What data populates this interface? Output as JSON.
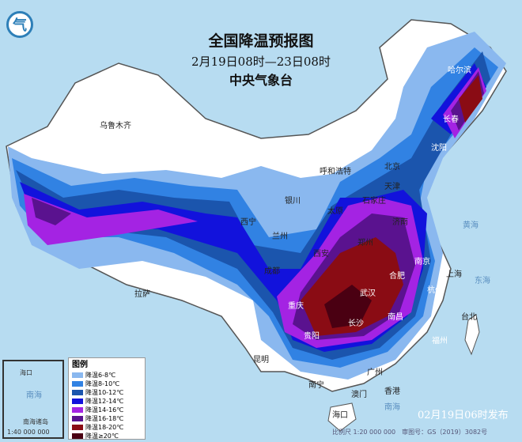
{
  "title": "全国降温预报图",
  "period": "2月19日08时—23日08时",
  "issuer": "中央气象台",
  "logo": "气",
  "publish_time": "02月19日06时发布",
  "scale_text": "比例尺 1:20 000 000　审图号：GS（2019）3082号",
  "inset": {
    "label_sea": "南海",
    "scale": "1:40 000 000",
    "label_title": "南海诸岛",
    "haikou": "海口"
  },
  "sea_labels": {
    "yellow": "黄海",
    "east": "东海",
    "south": "南海"
  },
  "legend": {
    "title": "图例",
    "items": [
      {
        "label": "降温6-8℃",
        "color": "#8ab8ef"
      },
      {
        "label": "降温8-10℃",
        "color": "#3182e3"
      },
      {
        "label": "降温10-12℃",
        "color": "#1b55ad"
      },
      {
        "label": "降温12-14℃",
        "color": "#1212dc"
      },
      {
        "label": "降温14-16℃",
        "color": "#a423e3"
      },
      {
        "label": "降温16-18℃",
        "color": "#5a128f"
      },
      {
        "label": "降温18-20℃",
        "color": "#8a0c14"
      },
      {
        "label": "降温≥20℃",
        "color": "#4a0012"
      }
    ]
  },
  "cities": [
    "乌鲁木齐",
    "哈尔滨",
    "长春",
    "沈阳",
    "呼和浩特",
    "北京",
    "天津",
    "银川",
    "太原",
    "石家庄",
    "济南",
    "西宁",
    "兰州",
    "郑州",
    "西安",
    "合肥",
    "南京",
    "上海",
    "杭州",
    "成都",
    "武汉",
    "重庆",
    "长沙",
    "南昌",
    "拉萨",
    "福州",
    "贵阳",
    "昆明",
    "南宁",
    "广州",
    "香港",
    "澳门",
    "台北",
    "海口"
  ]
}
